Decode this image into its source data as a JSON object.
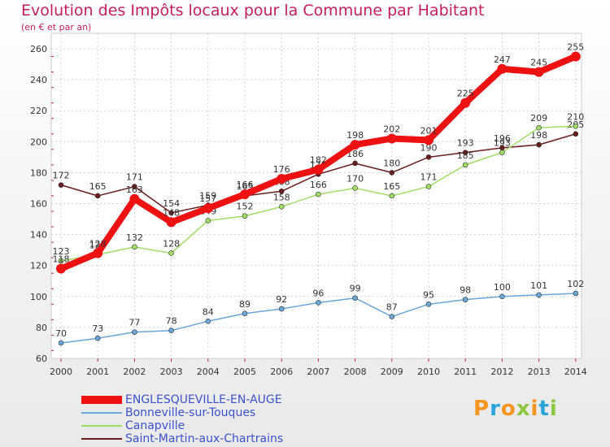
{
  "title": "Evolution des Impôts locaux pour la Commune par Habitant",
  "subtitle": "(en € et par an)",
  "logo": {
    "text": "Proxiti",
    "colors": [
      "#f7941d",
      "#2aa5d8",
      "#f7941d",
      "#8dc63f",
      "#f7941d",
      "#2aa5d8",
      "#8dc63f"
    ]
  },
  "chart_data": {
    "type": "line",
    "categories": [
      "2000",
      "2001",
      "2002",
      "2003",
      "2004",
      "2005",
      "2006",
      "2007",
      "2008",
      "2009",
      "2010",
      "2011",
      "2012",
      "2013",
      "2014"
    ],
    "ylim": [
      60,
      260
    ],
    "yticks": [
      60,
      80,
      100,
      120,
      140,
      160,
      180,
      200,
      220,
      240,
      260
    ],
    "grid": true,
    "legend_position": "bottom-left",
    "series": [
      {
        "name": "ENGLESQUEVILLE-EN-AUGE",
        "color": "#ee1111",
        "values": [
          118,
          128,
          163,
          148,
          157,
          166,
          176,
          182,
          198,
          202,
          201,
          225,
          247,
          245,
          255
        ]
      },
      {
        "name": "Bonneville-sur-Touques",
        "color": "#6aa6d8",
        "values": [
          70,
          73,
          77,
          78,
          84,
          89,
          92,
          96,
          99,
          87,
          95,
          98,
          100,
          101,
          102
        ]
      },
      {
        "name": "Canapville",
        "color": "#a0dd66",
        "values": [
          123,
          127,
          132,
          128,
          149,
          152,
          158,
          166,
          170,
          165,
          171,
          185,
          193,
          209,
          210
        ]
      },
      {
        "name": "Saint-Martin-aux-Chartrains",
        "color": "#6b1c1c",
        "values": [
          172,
          165,
          171,
          154,
          159,
          165,
          168,
          179,
          186,
          180,
          190,
          193,
          196,
          198,
          205
        ]
      }
    ]
  }
}
